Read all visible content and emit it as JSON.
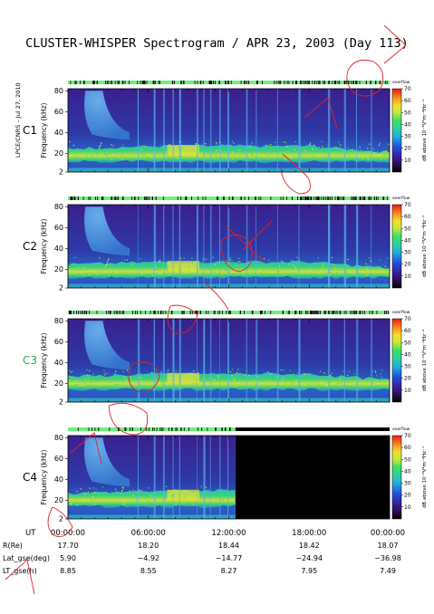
{
  "title": "CLUSTER-WHISPER Spectrogram / APR 23, 2003 (Day 113)",
  "side_label": "LPCE/CNRS – Jul 27, 2010",
  "ylabel": "Frequency (kHz)",
  "y_ticks": [
    "2",
    "20",
    "40",
    "60",
    "80"
  ],
  "colorbar": {
    "top_label": "overflow",
    "label": "dB above 10⁻⁸V²m⁻²Hz⁻¹",
    "ticks": [
      "10",
      "20",
      "30",
      "40",
      "50",
      "60",
      "70"
    ]
  },
  "panels": [
    {
      "name": "C1",
      "label_color": "#000000"
    },
    {
      "name": "C2",
      "label_color": "#000000"
    },
    {
      "name": "C3",
      "label_color": "#1fae57"
    },
    {
      "name": "C4",
      "label_color": "#000000"
    }
  ],
  "orbit_table": {
    "row_labels": [
      "UT",
      "R(Re)",
      "Lat_gse(deg)",
      "LT_gse(h)"
    ],
    "columns": [
      [
        "00:00:00",
        "17.70",
        "5.90",
        "8.85"
      ],
      [
        "06:00:00",
        "18.20",
        "−4.92",
        "8.55"
      ],
      [
        "12:00:00",
        "18.44",
        "−14.77",
        "8.27"
      ],
      [
        "18:00:00",
        "18.42",
        "−24.94",
        "7.95"
      ],
      [
        "00:00:00",
        "18.07",
        "−36.98",
        "7.49"
      ]
    ]
  },
  "chart_data": {
    "type": "heatmap",
    "title": "CLUSTER-WHISPER Spectrogram / APR 23, 2003 (Day 113)",
    "xlabel": "UT",
    "ylabel": "Frequency (kHz)",
    "x_ticks": [
      "00:00:00",
      "06:00:00",
      "12:00:00",
      "18:00:00",
      "00:00:00"
    ],
    "x_range_hours": [
      0,
      24
    ],
    "y_range_khz": [
      2,
      82
    ],
    "color_range_db": [
      10,
      70
    ],
    "series": [
      {
        "name": "C1",
        "data_until_hour": 24,
        "plasma_line_khz": 20
      },
      {
        "name": "C2",
        "data_until_hour": 24,
        "plasma_line_khz": 20
      },
      {
        "name": "C3",
        "data_until_hour": 24,
        "plasma_line_khz": 22
      },
      {
        "name": "C4",
        "data_until_hour": 12.5,
        "plasma_line_khz": 22
      }
    ]
  },
  "colors": {
    "background_low": "#3c1c8c",
    "background_mid": "#2a57c8",
    "band_green": "#3dd07a",
    "band_yellow": "#e8e23a",
    "status_bar": "#6ff07e",
    "annotation": "#e0222a"
  }
}
